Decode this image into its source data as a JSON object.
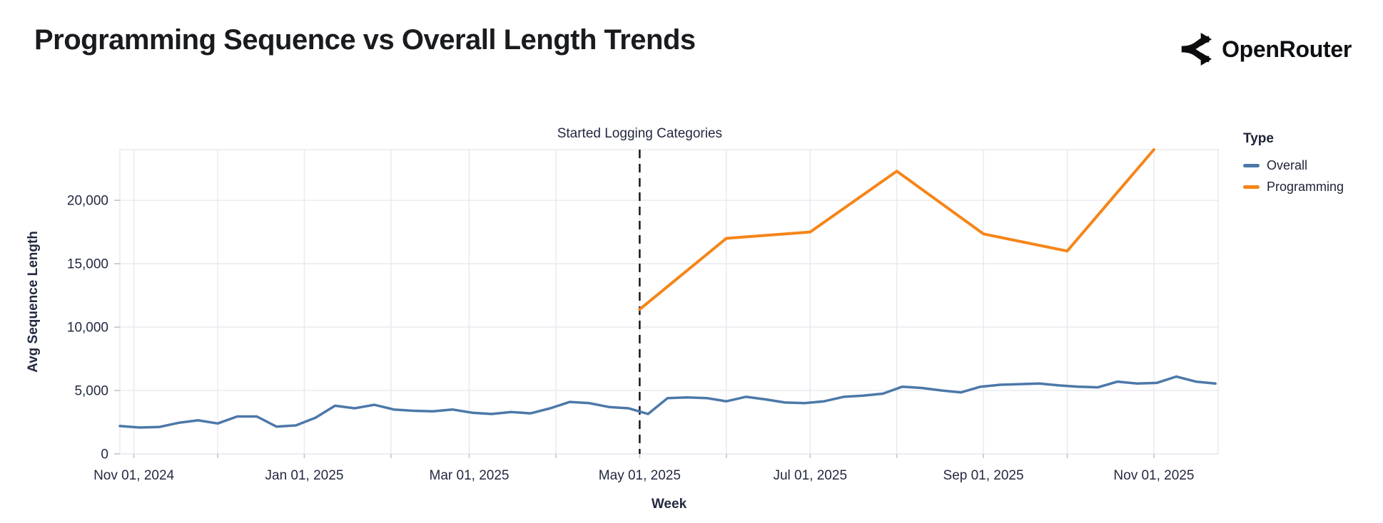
{
  "header": {
    "title": "Programming Sequence vs Overall Length Trends",
    "brand": "OpenRouter"
  },
  "chart_data": {
    "type": "line",
    "title": "Programming Sequence vs Overall Length Trends",
    "xlabel": "Week",
    "ylabel": "Avg Sequence Length",
    "x_domain": [
      "2024-10-27",
      "2025-11-24"
    ],
    "ylim": [
      0,
      24000
    ],
    "grid": true,
    "legend_position": "right",
    "yticks": [
      {
        "v": 0,
        "label": "0"
      },
      {
        "v": 5000,
        "label": "5,000"
      },
      {
        "v": 10000,
        "label": "10,000"
      },
      {
        "v": 15000,
        "label": "15,000"
      },
      {
        "v": 20000,
        "label": "20,000"
      }
    ],
    "xticks": [
      {
        "d": "2024-11-01",
        "label": "Nov 01, 2024"
      },
      {
        "d": "2024-12-01",
        "label": ""
      },
      {
        "d": "2025-01-01",
        "label": "Jan 01, 2025"
      },
      {
        "d": "2025-02-01",
        "label": ""
      },
      {
        "d": "2025-03-01",
        "label": "Mar 01, 2025"
      },
      {
        "d": "2025-04-01",
        "label": ""
      },
      {
        "d": "2025-05-01",
        "label": "May 01, 2025"
      },
      {
        "d": "2025-06-01",
        "label": ""
      },
      {
        "d": "2025-07-01",
        "label": "Jul 01, 2025"
      },
      {
        "d": "2025-08-01",
        "label": ""
      },
      {
        "d": "2025-09-01",
        "label": "Sep 01, 2025"
      },
      {
        "d": "2025-10-01",
        "label": ""
      },
      {
        "d": "2025-11-01",
        "label": "Nov 01, 2025"
      }
    ],
    "annotation": {
      "label": "Started Logging Categories",
      "date": "2025-05-01",
      "line_color": "#17171f"
    },
    "legend": {
      "title": "Type",
      "items": [
        {
          "label": "Overall",
          "color": "#4c78a8"
        },
        {
          "label": "Programming",
          "color": "#f58518"
        }
      ]
    },
    "series": [
      {
        "name": "Overall",
        "color": "#4c78a8",
        "stroke_width": 3.5,
        "start": "2024-10-27",
        "step_days": 7,
        "values": [
          2200,
          2080,
          2120,
          2450,
          2650,
          2400,
          2950,
          2950,
          2150,
          2250,
          2850,
          3800,
          3600,
          3870,
          3500,
          3400,
          3360,
          3500,
          3250,
          3150,
          3300,
          3200,
          3600,
          4100,
          4000,
          3700,
          3600,
          3150,
          4400,
          4450,
          4400,
          4150,
          4500,
          4300,
          4050,
          4000,
          4150,
          4500,
          4600,
          4750,
          5300,
          5200,
          5000,
          4850,
          5300,
          5450,
          5500,
          5550,
          5400,
          5300,
          5250,
          5700,
          5550,
          5600,
          6100,
          5700,
          5550
        ]
      },
      {
        "name": "Programming",
        "color": "#f58518",
        "stroke_width": 4,
        "points": [
          [
            "2025-05-01",
            11400
          ],
          [
            "2025-06-01",
            17000
          ],
          [
            "2025-07-01",
            17500
          ],
          [
            "2025-08-01",
            22300
          ],
          [
            "2025-09-01",
            17350
          ],
          [
            "2025-10-01",
            16000
          ],
          [
            "2025-11-01",
            24000
          ]
        ]
      }
    ],
    "colors": {
      "grid": "#e8e8f0",
      "tick": "#c3c3ce",
      "text": "#232940",
      "title": "#191b1f"
    }
  }
}
